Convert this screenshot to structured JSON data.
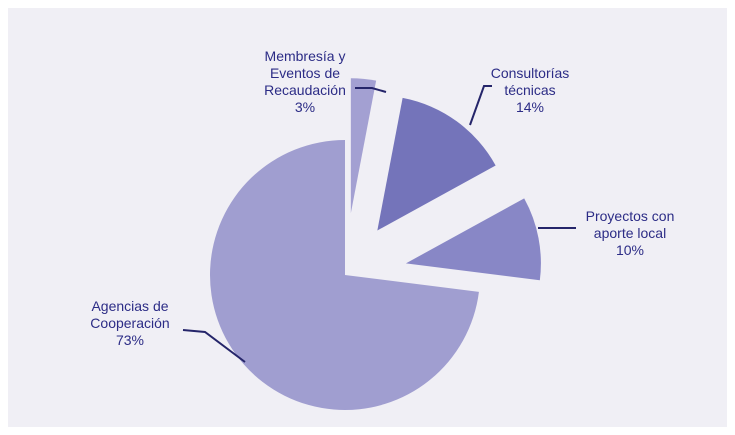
{
  "chart_data": {
    "type": "pie",
    "categories": [
      "Membresía y Eventos de Recaudación",
      "Consultorías técnicas",
      "Proyectos con aporte local",
      "Agencias de Cooperación"
    ],
    "values": [
      3,
      14,
      10,
      73
    ],
    "value_labels": [
      "3%",
      "14%",
      "10%",
      "73%"
    ],
    "colors": [
      "#a3a0d2",
      "#7474ba",
      "#8887c6",
      "#a09ed0"
    ]
  }
}
